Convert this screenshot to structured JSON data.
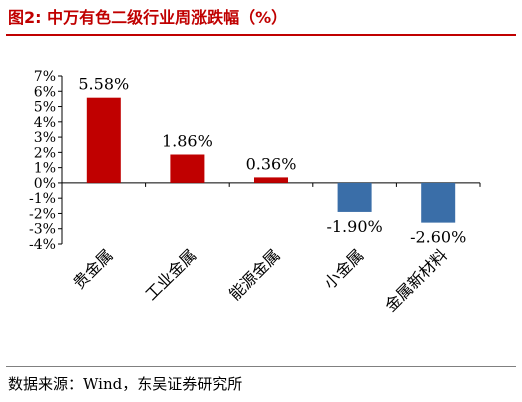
{
  "figure": {
    "title": "图2:  中万有色二级行业周涨跌幅（%）",
    "source": "数据来源：Wind，东吴证券研究所"
  },
  "colors": {
    "positive": "#c00000",
    "negative": "#3a6ea8",
    "rule": "#c00000"
  },
  "chart_data": {
    "type": "bar",
    "categories": [
      "贵金属",
      "工业金属",
      "能源金属",
      "小金属",
      "金属新材料"
    ],
    "values": [
      5.58,
      1.86,
      0.36,
      -1.9,
      -2.6
    ],
    "data_labels": [
      "5.58%",
      "1.86%",
      "0.36%",
      "-1.90%",
      "-2.60%"
    ],
    "ylim": [
      -4,
      7
    ],
    "yticks": [
      7,
      6,
      5,
      4,
      3,
      2,
      1,
      0,
      -1,
      -2,
      -3,
      -4
    ],
    "ytick_labels": [
      "7%",
      "6%",
      "5%",
      "4%",
      "3%",
      "2%",
      "1%",
      "0%",
      "-1%",
      "-2%",
      "-3%",
      "-4%"
    ],
    "grid": false,
    "legend": "none"
  }
}
